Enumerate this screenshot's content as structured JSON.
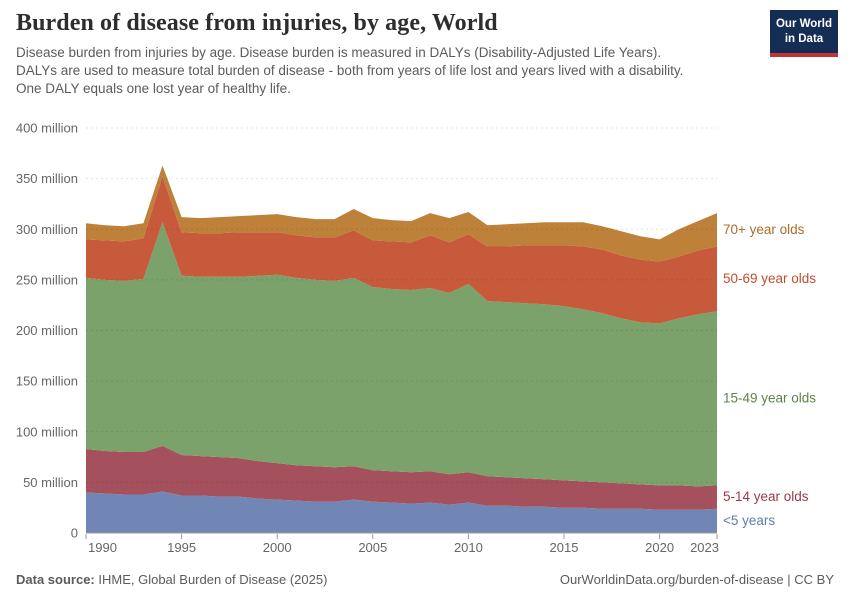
{
  "header": {
    "title": "Burden of disease from injuries, by age, World",
    "subtitle_lines": [
      "Disease burden from injuries by age. Disease burden is measured in DALYs (Disability-Adjusted Life Years).",
      "DALYs are used to measure total burden of disease - both from years of life lost and years lived with a disability.",
      "One DALY equals one lost year of healthy life."
    ]
  },
  "logo": {
    "line1": "Our World",
    "line2": "in Data",
    "bg_color": "#142D55",
    "stripe_color": "#C23335"
  },
  "chart_data": {
    "type": "area",
    "stacked": true,
    "title": "Burden of disease from injuries, by age, World",
    "unit": "DALYs (Disability-Adjusted Life Years)",
    "grid": "horizontal dashed",
    "legend_position": "right of areas, colored text labels",
    "ylim": [
      0,
      400
    ],
    "ytick_step": 50,
    "ytick_labels": [
      "0",
      "50 million",
      "100 million",
      "150 million",
      "200 million",
      "250 million",
      "300 million",
      "350 million",
      "400 million"
    ],
    "xticks": [
      1990,
      1995,
      2000,
      2005,
      2010,
      2015,
      2020,
      2023
    ],
    "years": [
      1990,
      1991,
      1992,
      1993,
      1994,
      1995,
      1996,
      1997,
      1998,
      1999,
      2000,
      2001,
      2002,
      2003,
      2004,
      2005,
      2006,
      2007,
      2008,
      2009,
      2010,
      2011,
      2012,
      2013,
      2014,
      2015,
      2016,
      2017,
      2018,
      2019,
      2020,
      2021,
      2022,
      2023
    ],
    "values_unit": "million DALYs",
    "series": [
      {
        "id": "under-5",
        "name": "<5 years",
        "color": "#7286B5",
        "label_color": "#5E7CB0",
        "values": [
          40,
          39,
          38,
          38,
          41,
          37,
          37,
          36,
          36,
          34,
          33,
          32,
          31,
          31,
          33,
          31,
          30,
          29,
          30,
          28,
          30,
          27,
          27,
          26,
          26,
          25,
          25,
          24,
          24,
          24,
          23,
          23,
          23,
          24
        ]
      },
      {
        "id": "5-14",
        "name": "5-14 year olds",
        "color": "#A4515D",
        "label_color": "#9D3847",
        "values": [
          43,
          42,
          42,
          42,
          45,
          40,
          39,
          39,
          38,
          37,
          36,
          35,
          35,
          34,
          33,
          31,
          31,
          31,
          31,
          30,
          30,
          29,
          28,
          28,
          27,
          27,
          26,
          26,
          25,
          24,
          24,
          24,
          23,
          23
        ]
      },
      {
        "id": "15-49",
        "name": "15-49 year olds",
        "color": "#7CA26B",
        "label_color": "#5F8345",
        "values": [
          169,
          169,
          169,
          171,
          221,
          177,
          177,
          178,
          179,
          183,
          186,
          185,
          184,
          184,
          186,
          181,
          180,
          180,
          181,
          179,
          186,
          173,
          173,
          173,
          173,
          172,
          170,
          167,
          163,
          160,
          160,
          165,
          170,
          172
        ]
      },
      {
        "id": "50-69",
        "name": "50-69 year olds",
        "color": "#C75A3B",
        "label_color": "#C04E2E",
        "values": [
          38,
          39,
          39,
          40,
          45,
          43,
          43,
          43,
          44,
          43,
          42,
          42,
          42,
          43,
          47,
          46,
          47,
          47,
          52,
          50,
          49,
          54,
          55,
          57,
          58,
          60,
          62,
          63,
          62,
          62,
          61,
          61,
          63,
          64
        ]
      },
      {
        "id": "70-plus",
        "name": "70+ year olds",
        "color": "#BE8139",
        "label_color": "#AD6C29",
        "values": [
          16,
          15,
          15,
          15,
          11,
          15,
          15,
          16,
          16,
          17,
          18,
          18,
          18,
          18,
          21,
          22,
          21,
          21,
          22,
          24,
          22,
          21,
          22,
          22,
          23,
          23,
          24,
          23,
          24,
          23,
          22,
          27,
          29,
          33
        ]
      }
    ]
  },
  "footer": {
    "datasource_label": "Data source:",
    "datasource_value": " IHME, Global Burden of Disease (2025)",
    "link_text": "OurWorldinData.org/burden-of-disease",
    "license_text": " | CC BY"
  }
}
